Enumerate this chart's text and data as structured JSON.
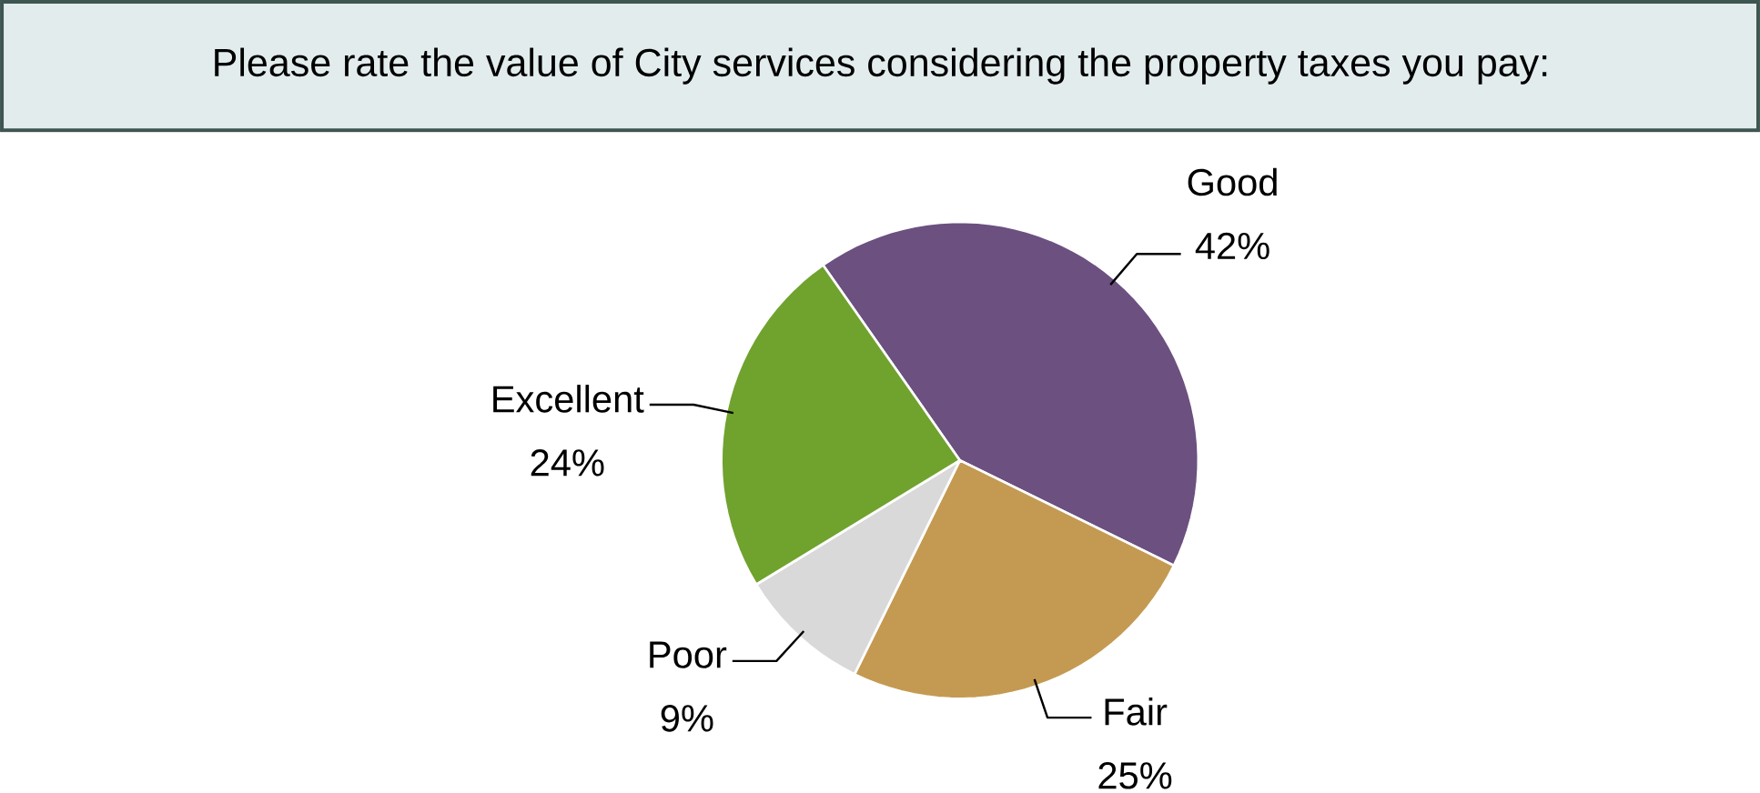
{
  "chart_data": {
    "type": "pie",
    "title": "Please rate the value of City services considering the property taxes you pay:",
    "categories": [
      "Good",
      "Fair",
      "Poor",
      "Excellent"
    ],
    "values": [
      42,
      25,
      9,
      24
    ],
    "value_labels": [
      "42%",
      "25%",
      "9%",
      "24%"
    ],
    "colors": [
      "#6b5080",
      "#c49a52",
      "#d9d9d9",
      "#70a22e"
    ]
  }
}
